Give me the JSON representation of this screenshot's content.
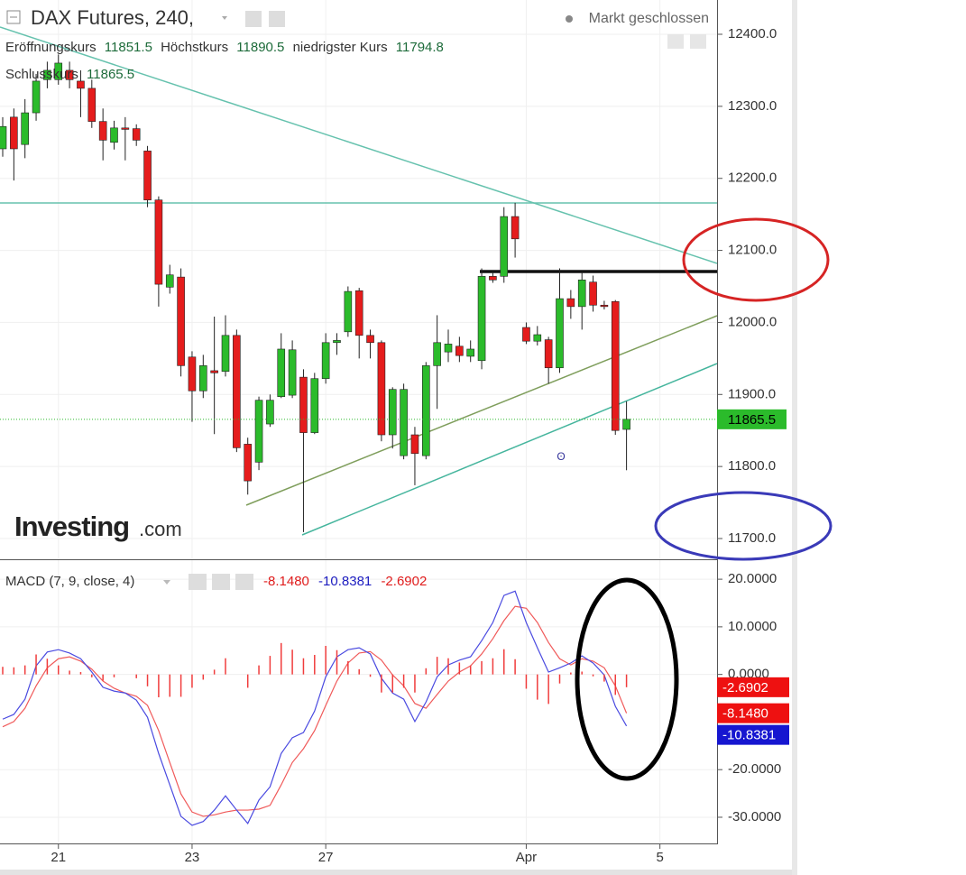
{
  "chart_data": [
    {
      "type": "candlestick",
      "title": "DAX Futures, 240,",
      "status": "Markt geschlossen",
      "watermark": [
        "Investing",
        ".com"
      ],
      "ohlc_labels": [
        "Eröffnungskurs",
        "Höchstkurs",
        "niedrigster Kurs",
        "Schlusskurs"
      ],
      "up_color": "#2bbb2b",
      "down_color": "#e51c1c",
      "open": [
        12241,
        12285,
        12247,
        12291,
        12337,
        12337,
        12350,
        12335,
        12325,
        12279,
        12250,
        12270,
        12269,
        12238,
        12170,
        12049,
        12063,
        11952,
        11905,
        11933,
        11932,
        11982,
        11831,
        11806,
        11859,
        11897,
        11899,
        11924,
        11847,
        11922,
        11972,
        11987,
        12044,
        11982,
        11972,
        11844,
        11815,
        11844,
        11815,
        11940,
        11959,
        11967,
        11953,
        11947,
        12064,
        12064,
        12147,
        11993,
        11974,
        11976,
        11937,
        12033,
        12022,
        12056,
        12024,
        12029,
        11851.5,
        null,
        null,
        null
      ],
      "high": [
        12285,
        12297,
        12310,
        12345,
        12362,
        12372,
        12362,
        12350,
        12337,
        12297,
        12280,
        12285,
        12275,
        12245,
        12175,
        12080,
        12075,
        11960,
        11955,
        12008,
        12010,
        11990,
        11840,
        11897,
        11900,
        11985,
        11975,
        11935,
        11930,
        11985,
        11985,
        12050,
        12048,
        11990,
        11975,
        11910,
        11915,
        11855,
        11945,
        12010,
        11990,
        11980,
        11975,
        12075,
        12070,
        12160,
        12166,
        12000,
        11995,
        11980,
        12075,
        12045,
        12070,
        12065,
        12030,
        12031,
        11890.5,
        null,
        null,
        null
      ],
      "low": [
        12230,
        12197,
        12228,
        12280,
        12325,
        12330,
        12325,
        12285,
        12270,
        12225,
        12240,
        12225,
        12245,
        12160,
        12022,
        12040,
        11925,
        11862,
        11895,
        11845,
        11925,
        11820,
        11761,
        11795,
        11855,
        11895,
        11895,
        11709,
        11845,
        11915,
        11955,
        11980,
        11950,
        11950,
        11835,
        11825,
        11810,
        11774,
        11810,
        11880,
        11945,
        11945,
        11945,
        11935,
        12055,
        12055,
        12090,
        11970,
        11968,
        11915,
        11930,
        12005,
        11990,
        12015,
        12018,
        11844,
        11794.8,
        null,
        null,
        null
      ],
      "close": [
        12272,
        12241,
        12291,
        12335,
        12350,
        12360,
        12337,
        12325,
        12279,
        12253,
        12270,
        12268,
        12253,
        12170,
        12053,
        12066,
        11940,
        11905,
        11940,
        11930,
        11982,
        11826,
        11780,
        11892,
        11892,
        11963,
        11962,
        11847,
        11922,
        11972,
        11975,
        12043,
        11982,
        11972,
        11844,
        11907,
        11907,
        11818,
        11940,
        11972,
        11970,
        11954,
        11963,
        12064,
        12059,
        12147,
        12116,
        11974,
        11983,
        11937,
        12033,
        12022,
        12059,
        12024,
        12022,
        11850,
        11865.5,
        null,
        null,
        null
      ],
      "ylim": [
        11671.2,
        12447.6
      ],
      "yticks": [
        {
          "value": 12400,
          "label": "12400.0"
        },
        {
          "value": 12300,
          "label": "12300.0"
        },
        {
          "value": 12200,
          "label": "12200.0"
        },
        {
          "value": 12100,
          "label": "12100.0"
        },
        {
          "value": 12000,
          "label": "12000.0"
        },
        {
          "value": 11900,
          "label": "11900.0"
        },
        {
          "value": 11800,
          "label": "11800.0"
        },
        {
          "value": 11700,
          "label": "11700.0"
        }
      ],
      "grid": true
    },
    {
      "type": "macd",
      "title": "MACD (7, 9, close, 4)",
      "categories": [
        null,
        null,
        null,
        null,
        null,
        "21",
        null,
        null,
        null,
        null,
        null,
        null,
        null,
        null,
        null,
        null,
        null,
        "23",
        null,
        null,
        null,
        null,
        null,
        null,
        null,
        null,
        null,
        null,
        null,
        "27",
        null,
        null,
        null,
        null,
        null,
        null,
        null,
        null,
        null,
        null,
        null,
        null,
        null,
        null,
        null,
        null,
        null,
        "Apr",
        null,
        null,
        null,
        null,
        null,
        null,
        null,
        null,
        null,
        null,
        null,
        "5"
      ],
      "series": [
        {
          "style": "line",
          "color": "#f05a5a",
          "values": [
            -11.0,
            -9.9,
            -7.1,
            -2.4,
            1.4,
            3.3,
            3.7,
            2.8,
            1.1,
            -1.4,
            -2.9,
            -3.9,
            -4.6,
            -6.5,
            -11.8,
            -18.5,
            -25.1,
            -28.9,
            -29.8,
            -29.5,
            -28.9,
            -28.5,
            -28.5,
            -28.3,
            -27.5,
            -23.2,
            -18.5,
            -15.6,
            -11.8,
            -6.5,
            -1.4,
            2.4,
            4.5,
            4.8,
            3.0,
            -0.1,
            -2.4,
            -6.1,
            -7.1,
            -4.2,
            -1.4,
            0.5,
            1.8,
            4.3,
            7.5,
            11.3,
            14.3,
            13.9,
            10.9,
            6.7,
            3.3,
            2.0,
            3.3,
            2.8,
            1.4,
            -2.4,
            -8.148,
            null,
            null,
            null
          ],
          "value_labels": [
            null,
            null,
            null,
            null,
            null,
            null,
            null,
            null,
            null,
            null,
            null,
            null,
            null,
            null,
            null,
            null,
            null,
            null,
            null,
            null,
            null,
            null,
            null,
            null,
            null,
            null,
            null,
            null,
            null,
            null,
            null,
            null,
            null,
            null,
            null,
            null,
            null,
            null,
            null,
            null,
            null,
            null,
            null,
            null,
            null,
            null,
            null,
            null,
            null,
            null,
            null,
            null,
            null,
            null,
            null,
            null,
            "-8.1480",
            null,
            null,
            null
          ]
        },
        {
          "style": "line",
          "color": "#4a4ae0",
          "values": [
            -9.4,
            -8.4,
            -5.2,
            1.8,
            4.7,
            5.2,
            4.5,
            3.3,
            0.5,
            -2.7,
            -3.5,
            -3.9,
            -5.4,
            -9.0,
            -16.6,
            -23.2,
            -29.8,
            -31.7,
            -30.9,
            -28.5,
            -25.5,
            -28.5,
            -31.3,
            -26.4,
            -23.6,
            -16.6,
            -13.3,
            -12.2,
            -7.7,
            -0.5,
            3.7,
            5.2,
            5.6,
            4.3,
            -0.8,
            -3.9,
            -5.2,
            -9.9,
            -5.8,
            -0.5,
            2.0,
            3.0,
            3.7,
            7.1,
            10.9,
            16.6,
            17.5,
            10.9,
            5.6,
            0.5,
            1.4,
            2.4,
            3.9,
            2.4,
            -0.1,
            -6.7,
            -10.8381,
            null,
            null,
            null
          ],
          "value_labels": [
            null,
            null,
            null,
            null,
            null,
            null,
            null,
            null,
            null,
            null,
            null,
            null,
            null,
            null,
            null,
            null,
            null,
            null,
            null,
            null,
            null,
            null,
            null,
            null,
            null,
            null,
            null,
            null,
            null,
            null,
            null,
            null,
            null,
            null,
            null,
            null,
            null,
            null,
            null,
            null,
            null,
            null,
            null,
            null,
            null,
            null,
            null,
            null,
            null,
            null,
            null,
            null,
            null,
            null,
            null,
            null,
            "-10.8381",
            null,
            null,
            null
          ]
        },
        {
          "style": "bar",
          "color": "#f03c3c",
          "values": [
            1.6,
            1.5,
            1.9,
            4.2,
            3.3,
            1.9,
            0.8,
            0.5,
            -0.6,
            -1.3,
            -0.6,
            0.0,
            -0.8,
            -2.5,
            -4.8,
            -4.7,
            -4.7,
            -2.8,
            -1.1,
            1.0,
            3.4,
            0.0,
            -2.8,
            1.9,
            3.9,
            6.6,
            5.2,
            3.4,
            4.1,
            6.0,
            5.1,
            2.8,
            1.1,
            -0.5,
            -3.8,
            -3.8,
            -2.8,
            -3.8,
            1.3,
            3.7,
            3.4,
            2.5,
            1.9,
            2.8,
            3.4,
            5.3,
            3.2,
            -3.0,
            -5.3,
            -6.2,
            -1.9,
            0.4,
            0.6,
            -0.4,
            -1.5,
            -4.3,
            -2.6902,
            null,
            null,
            null
          ],
          "value_labels": [
            null,
            null,
            null,
            null,
            null,
            null,
            null,
            null,
            null,
            null,
            null,
            null,
            null,
            null,
            null,
            null,
            null,
            null,
            null,
            null,
            null,
            null,
            null,
            null,
            null,
            null,
            null,
            null,
            null,
            null,
            null,
            null,
            null,
            null,
            null,
            null,
            null,
            null,
            null,
            null,
            null,
            null,
            null,
            null,
            null,
            null,
            null,
            null,
            null,
            null,
            null,
            null,
            null,
            null,
            null,
            null,
            "-2.6902",
            null,
            null,
            null
          ]
        }
      ],
      "ylim": [
        -35.5,
        24
      ],
      "yticks": [
        {
          "value": 20,
          "label": "20.0000"
        },
        {
          "value": 10,
          "label": "10.0000"
        },
        {
          "value": 0,
          "label": "0.0000"
        },
        {
          "value": -20,
          "label": "-20.0000"
        },
        {
          "value": -30,
          "label": "-30.0000"
        }
      ],
      "grid": true
    }
  ]
}
